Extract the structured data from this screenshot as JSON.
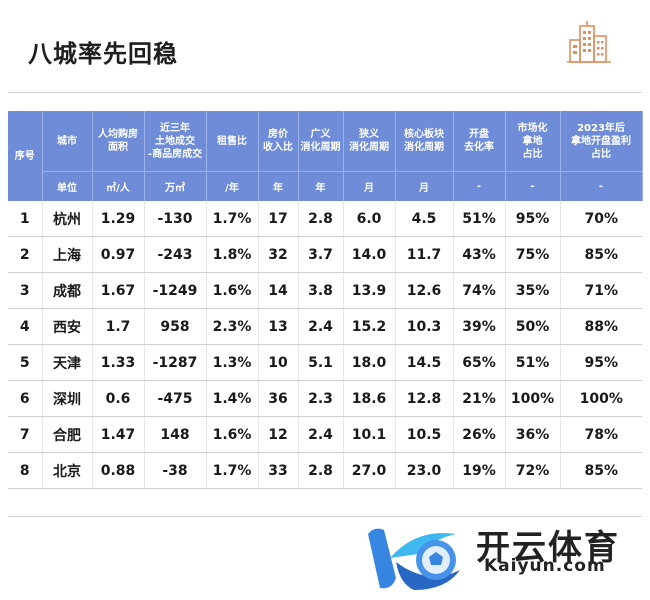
{
  "title": "八城率先回稳",
  "table": {
    "headers": [
      {
        "label": "序号",
        "unit": ""
      },
      {
        "label": "城市",
        "unit": "单位"
      },
      {
        "label": "人均购房\n面积",
        "unit": "㎡/人"
      },
      {
        "label": "近三年\n土地成交\n-商品房成交",
        "unit": "万㎡"
      },
      {
        "label": "租售比",
        "unit": "/年"
      },
      {
        "label": "房价\n收入比",
        "unit": "年"
      },
      {
        "label": "广义\n消化周期",
        "unit": "年"
      },
      {
        "label": "狭义\n消化周期",
        "unit": "月"
      },
      {
        "label": "核心板块\n消化周期",
        "unit": "月"
      },
      {
        "label": "开盘\n去化率",
        "unit": "-"
      },
      {
        "label": "市场化\n拿地\n占比",
        "unit": "-"
      },
      {
        "label": "2023年后\n拿地开盘盈利\n占比",
        "unit": "-"
      }
    ],
    "rows": [
      [
        "1",
        "杭州",
        "1.29",
        "-130",
        "1.7%",
        "17",
        "2.8",
        "6.0",
        "4.5",
        "51%",
        "95%",
        "70%"
      ],
      [
        "2",
        "上海",
        "0.97",
        "-243",
        "1.8%",
        "32",
        "3.7",
        "14.0",
        "11.7",
        "43%",
        "75%",
        "85%"
      ],
      [
        "3",
        "成都",
        "1.67",
        "-1249",
        "1.6%",
        "14",
        "3.8",
        "13.9",
        "12.6",
        "74%",
        "35%",
        "71%"
      ],
      [
        "4",
        "西安",
        "1.7",
        "958",
        "2.3%",
        "13",
        "2.4",
        "15.2",
        "10.3",
        "39%",
        "50%",
        "88%"
      ],
      [
        "5",
        "天津",
        "1.33",
        "-1287",
        "1.3%",
        "10",
        "5.1",
        "18.0",
        "14.5",
        "65%",
        "51%",
        "95%"
      ],
      [
        "6",
        "深圳",
        "0.6",
        "-475",
        "1.4%",
        "36",
        "2.3",
        "18.6",
        "12.8",
        "21%",
        "100%",
        "100%"
      ],
      [
        "7",
        "合肥",
        "1.47",
        "148",
        "1.6%",
        "12",
        "2.4",
        "10.1",
        "10.5",
        "26%",
        "36%",
        "78%"
      ],
      [
        "8",
        "北京",
        "0.88",
        "-38",
        "1.7%",
        "33",
        "2.8",
        "27.0",
        "23.0",
        "19%",
        "72%",
        "85%"
      ]
    ]
  },
  "watermark": {
    "text_cn": "开云体育",
    "text_en": "Kaiyun.com"
  },
  "colors": {
    "header_bg": "#6f8cd9",
    "accent_icon": "#e58d5c"
  }
}
